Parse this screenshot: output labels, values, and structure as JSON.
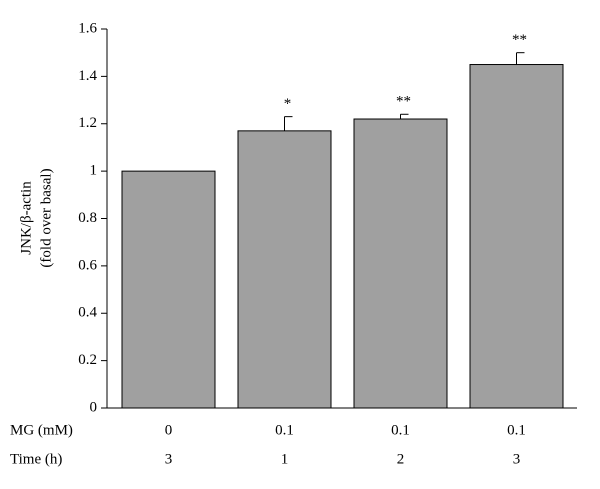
{
  "chart_data": {
    "type": "bar",
    "y_label": [
      "JNK/β-actin",
      "(fold over basal)"
    ],
    "categories": [
      null,
      null,
      null,
      null
    ],
    "category_rows": [
      {
        "label": "MG (mM)",
        "values": [
          0,
          0.1,
          0.1,
          0.1
        ]
      },
      {
        "label": "Time (h)",
        "values": [
          3,
          1,
          2,
          3
        ]
      }
    ],
    "values": [
      1.0,
      1.17,
      1.22,
      1.45
    ],
    "errors": [
      0,
      0.06,
      0.02,
      0.05
    ],
    "annotations": [
      null,
      "*",
      "**",
      "**"
    ],
    "color": "#a0a0a0",
    "ylim": [
      0,
      1.6
    ],
    "yticks": [
      0,
      0.2,
      0.4,
      0.6,
      0.8,
      1,
      1.2,
      1.4,
      1.6
    ],
    "grid": false
  }
}
